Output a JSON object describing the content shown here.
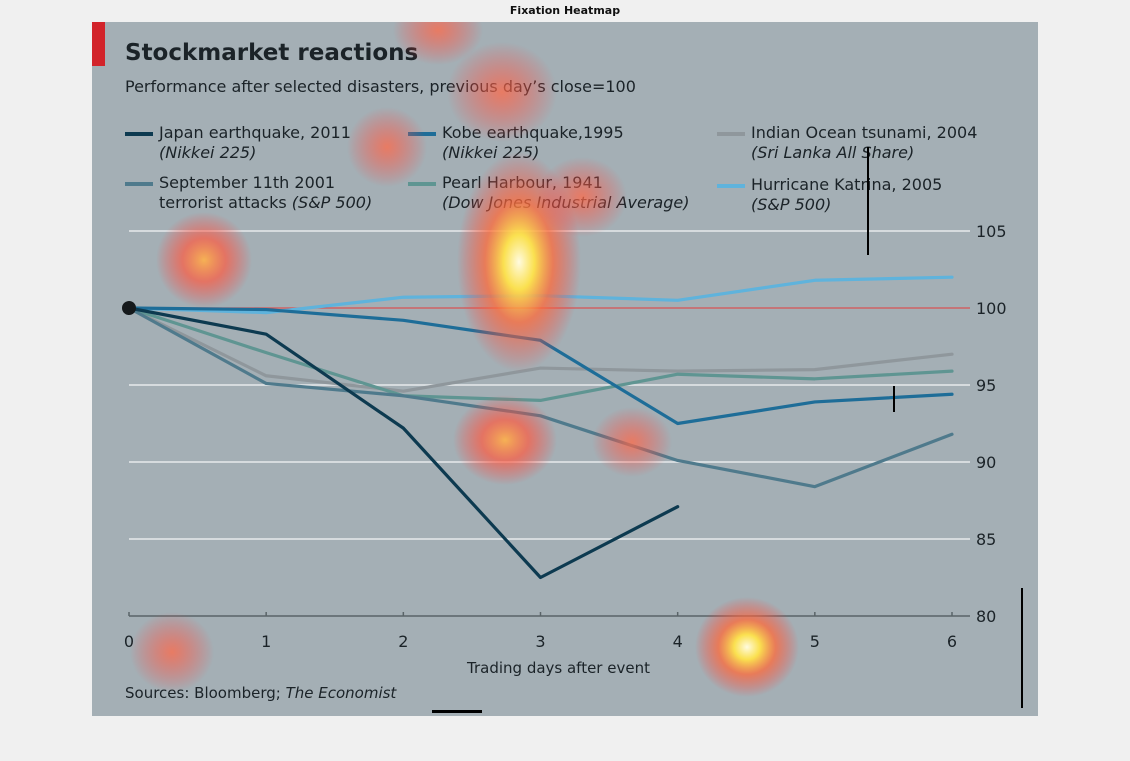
{
  "window": {
    "title": "Fixation Heatmap"
  },
  "figure": {
    "title": "Stockmarket reactions",
    "subtitle": "Performance after selected disasters, previous day’s close=100",
    "sources_prefix": "Sources: Bloomberg; ",
    "sources_italic": "The Economist"
  },
  "legend": [
    {
      "label": "Japan earthquake, 2011",
      "sub": "(Nikkei 225)",
      "color": "#0d3a50"
    },
    {
      "label": "Kobe earthquake,1995",
      "sub": "(Nikkei 225)",
      "color": "#1e6d98"
    },
    {
      "label": "Indian Ocean tsunami, 2004",
      "sub": "(Sri Lanka All Share)",
      "color": "#8f979c"
    },
    {
      "label": "September 11th 2001",
      "sub_plain": "terrorist attacks ",
      "sub": "(S&P 500)",
      "color": "#4f7a8c"
    },
    {
      "label": "Pearl Harbour, 1941",
      "sub": "(Dow Jones Industrial Average)",
      "color": "#5f9592"
    },
    {
      "label": "Hurricane Katrina, 2005",
      "sub": "(S&P 500)",
      "color": "#5fb3dc"
    }
  ],
  "chart_data": {
    "type": "line",
    "xlabel": "Trading days after event",
    "ylabel": "",
    "x": [
      0,
      1,
      2,
      3,
      4,
      5,
      6
    ],
    "xlim": [
      0,
      6
    ],
    "ylim": [
      80,
      105
    ],
    "yticks": [
      80,
      85,
      90,
      95,
      100,
      105
    ],
    "reference_line": 100,
    "series": [
      {
        "name": "Japan earthquake, 2011",
        "x": [
          0,
          1,
          2,
          3,
          4
        ],
        "values": [
          100,
          98.3,
          92.2,
          82.5,
          87.1
        ],
        "color": "#0d3a50"
      },
      {
        "name": "Kobe earthquake,1995",
        "x": [
          0,
          1,
          2,
          3,
          4,
          5,
          6
        ],
        "values": [
          100,
          99.9,
          99.2,
          97.9,
          92.5,
          93.9,
          94.4
        ],
        "color": "#1e6d98"
      },
      {
        "name": "Indian Ocean tsunami, 2004",
        "x": [
          0,
          1,
          2,
          3,
          4,
          5,
          6
        ],
        "values": [
          100,
          95.6,
          94.6,
          96.1,
          95.9,
          96.0,
          97.0
        ],
        "color": "#8f979c"
      },
      {
        "name": "September 11th 2001 terrorist attacks (S&P 500)",
        "x": [
          0,
          1,
          2,
          3,
          4,
          5,
          6
        ],
        "values": [
          100,
          95.1,
          94.3,
          93.0,
          90.1,
          88.4,
          91.8
        ],
        "color": "#4f7a8c"
      },
      {
        "name": "Pearl Harbour, 1941",
        "x": [
          0,
          1,
          2,
          3,
          4,
          5,
          6
        ],
        "values": [
          100,
          97.1,
          94.3,
          94.0,
          95.7,
          95.4,
          95.9
        ],
        "color": "#5f9592"
      },
      {
        "name": "Hurricane Katrina, 2005",
        "x": [
          0,
          1,
          2,
          3,
          4,
          5,
          6
        ],
        "values": [
          100,
          99.7,
          100.7,
          100.8,
          100.5,
          101.8,
          102.0
        ],
        "color": "#5fb3dc"
      }
    ]
  }
}
